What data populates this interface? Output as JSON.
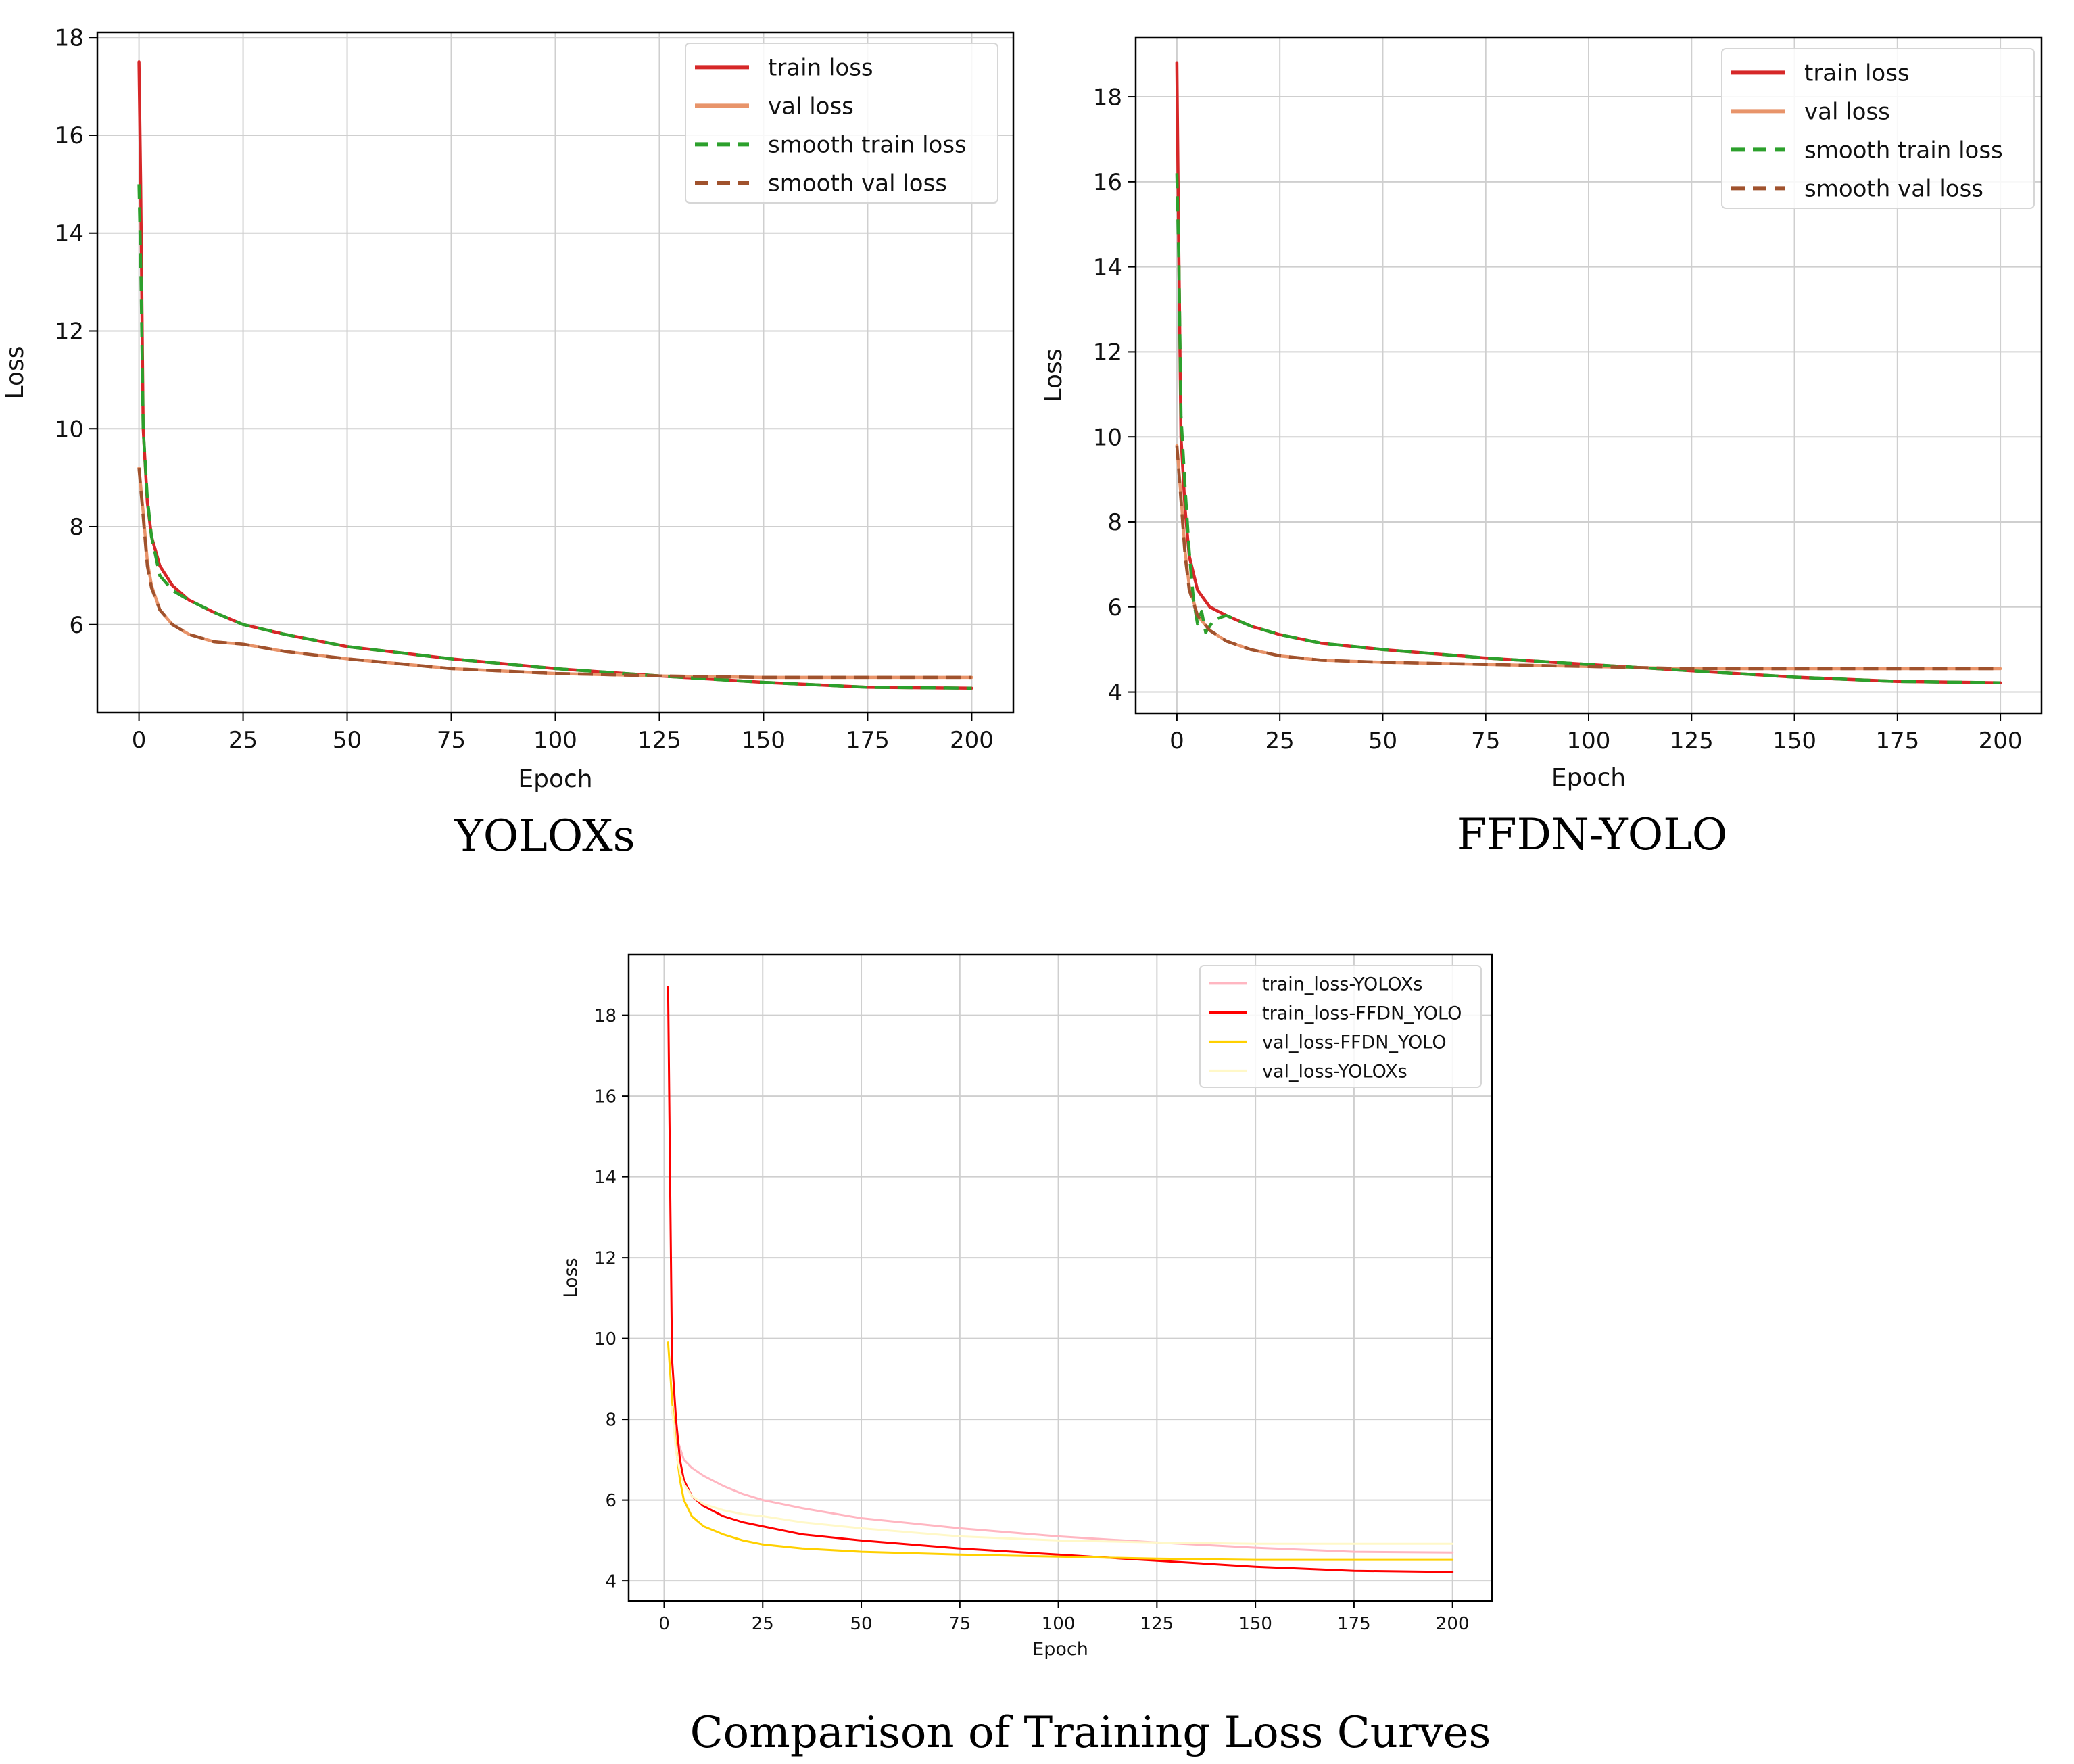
{
  "colors": {
    "train": "#d62728",
    "val": "#e8946a",
    "smooth_train": "#2ca02c",
    "smooth_val": "#a0522d",
    "cmp_train_yolox": "#ffb6c1",
    "cmp_train_ffdn": "#ff0000",
    "cmp_val_ffdn": "#ffd000",
    "cmp_val_yolox": "#fff8c8",
    "grid": "#cfcfcf",
    "axis": "#000000"
  },
  "chart_data": [
    {
      "type": "line",
      "caption": "YOLOXs",
      "xlabel": "Epoch",
      "ylabel": "Loss",
      "xlim": [
        -10,
        210
      ],
      "ylim": [
        4.2,
        18.1
      ],
      "xticks": [
        "0",
        "25",
        "50",
        "75",
        "100",
        "125",
        "150",
        "175",
        "200"
      ],
      "yticks": [
        "6",
        "8",
        "10",
        "12",
        "14",
        "16",
        "18"
      ],
      "legend_position": "top-right",
      "series": [
        {
          "name": "train loss",
          "style": "solid",
          "color_key": "train",
          "x": [
            0,
            0.4,
            1,
            2,
            3,
            5,
            8,
            12,
            18,
            25,
            35,
            50,
            75,
            100,
            125,
            150,
            175,
            200
          ],
          "y": [
            17.5,
            15.0,
            10.0,
            8.5,
            7.8,
            7.2,
            6.8,
            6.5,
            6.25,
            6.0,
            5.8,
            5.55,
            5.3,
            5.1,
            4.95,
            4.82,
            4.72,
            4.7
          ]
        },
        {
          "name": "val loss",
          "style": "solid",
          "color_key": "val",
          "x": [
            0,
            1,
            2,
            3,
            5,
            8,
            12,
            18,
            25,
            35,
            50,
            75,
            100,
            125,
            150,
            175,
            200
          ],
          "y": [
            9.2,
            8.3,
            7.3,
            6.8,
            6.3,
            6.0,
            5.8,
            5.65,
            5.6,
            5.45,
            5.3,
            5.1,
            5.0,
            4.95,
            4.92,
            4.92,
            4.92
          ]
        },
        {
          "name": "smooth train loss",
          "style": "dashed",
          "color_key": "smooth_train",
          "x": [
            0,
            0.5,
            1,
            2,
            3,
            5,
            8,
            12,
            18,
            25,
            35,
            50,
            75,
            100,
            125,
            150,
            175,
            200
          ],
          "y": [
            15.0,
            13.0,
            10.0,
            8.6,
            7.8,
            7.0,
            6.7,
            6.5,
            6.25,
            6.0,
            5.8,
            5.55,
            5.3,
            5.1,
            4.95,
            4.82,
            4.72,
            4.7
          ]
        },
        {
          "name": "smooth val loss",
          "style": "dashed",
          "color_key": "smooth_val",
          "x": [
            0,
            1,
            2,
            3,
            5,
            8,
            12,
            18,
            25,
            35,
            50,
            75,
            100,
            125,
            150,
            175,
            200
          ],
          "y": [
            9.2,
            8.2,
            7.2,
            6.75,
            6.3,
            6.0,
            5.8,
            5.65,
            5.6,
            5.45,
            5.3,
            5.1,
            5.0,
            4.95,
            4.92,
            4.92,
            4.92
          ]
        }
      ]
    },
    {
      "type": "line",
      "caption": "FFDN-YOLO",
      "xlabel": "Epoch",
      "ylabel": "Loss",
      "xlim": [
        -10,
        210
      ],
      "ylim": [
        3.5,
        19.4
      ],
      "xticks": [
        "0",
        "25",
        "50",
        "75",
        "100",
        "125",
        "150",
        "175",
        "200"
      ],
      "yticks": [
        "4",
        "6",
        "8",
        "10",
        "12",
        "14",
        "16",
        "18"
      ],
      "legend_position": "top-right",
      "series": [
        {
          "name": "train loss",
          "style": "solid",
          "color_key": "train",
          "x": [
            0,
            0.4,
            1,
            2,
            3,
            5,
            8,
            12,
            18,
            25,
            35,
            50,
            75,
            100,
            125,
            150,
            175,
            200
          ],
          "y": [
            18.8,
            15.0,
            10.0,
            8.3,
            7.2,
            6.4,
            6.0,
            5.8,
            5.55,
            5.35,
            5.15,
            5.0,
            4.8,
            4.65,
            4.5,
            4.35,
            4.25,
            4.22
          ]
        },
        {
          "name": "val loss",
          "style": "solid",
          "color_key": "val",
          "x": [
            0,
            1,
            2,
            3,
            5,
            8,
            12,
            18,
            25,
            35,
            50,
            75,
            100,
            125,
            150,
            175,
            200
          ],
          "y": [
            9.8,
            8.6,
            7.3,
            6.5,
            5.8,
            5.45,
            5.2,
            5.0,
            4.85,
            4.75,
            4.7,
            4.65,
            4.6,
            4.55,
            4.55,
            4.55,
            4.55
          ]
        },
        {
          "name": "smooth train loss",
          "style": "dashed",
          "color_key": "smooth_train",
          "x": [
            0,
            0.5,
            1,
            2,
            3,
            4,
            5,
            6,
            7,
            9,
            12,
            18,
            25,
            35,
            50,
            75,
            100,
            125,
            150,
            175,
            200
          ],
          "y": [
            16.2,
            14.0,
            10.5,
            8.8,
            7.3,
            6.2,
            5.6,
            5.9,
            5.4,
            5.7,
            5.8,
            5.55,
            5.35,
            5.15,
            5.0,
            4.8,
            4.65,
            4.5,
            4.35,
            4.25,
            4.22
          ]
        },
        {
          "name": "smooth val loss",
          "style": "dashed",
          "color_key": "smooth_val",
          "x": [
            0,
            1,
            2,
            3,
            5,
            8,
            12,
            18,
            25,
            35,
            50,
            75,
            100,
            125,
            150,
            175,
            200
          ],
          "y": [
            9.8,
            8.5,
            7.2,
            6.4,
            5.8,
            5.45,
            5.2,
            5.0,
            4.85,
            4.75,
            4.7,
            4.65,
            4.6,
            4.55,
            4.55,
            4.55,
            4.55
          ]
        }
      ]
    },
    {
      "type": "line",
      "caption": "Comparison of Training Loss Curves",
      "xlabel": "Epoch",
      "ylabel": "Loss",
      "xlim": [
        -9,
        210
      ],
      "ylim": [
        3.5,
        19.5
      ],
      "xticks": [
        "0",
        "25",
        "50",
        "75",
        "100",
        "125",
        "150",
        "175",
        "200"
      ],
      "yticks": [
        "4",
        "6",
        "8",
        "10",
        "12",
        "14",
        "16",
        "18"
      ],
      "legend_position": "top-right",
      "series": [
        {
          "name": "train_loss-YOLOXs",
          "style": "solid",
          "color_key": "cmp_train_yolox",
          "x": [
            2,
            3,
            4,
            5,
            7,
            10,
            15,
            20,
            25,
            35,
            50,
            75,
            100,
            125,
            150,
            175,
            200
          ],
          "y": [
            8.2,
            7.6,
            7.3,
            7.0,
            6.8,
            6.6,
            6.35,
            6.15,
            6.0,
            5.8,
            5.55,
            5.3,
            5.1,
            4.95,
            4.82,
            4.72,
            4.7
          ]
        },
        {
          "name": "train_loss-FFDN_YOLO",
          "style": "solid",
          "color_key": "cmp_train_ffdn",
          "x": [
            1,
            1.5,
            2,
            3,
            4,
            5,
            7,
            10,
            15,
            20,
            25,
            35,
            50,
            75,
            100,
            125,
            150,
            175,
            200
          ],
          "y": [
            18.7,
            14.0,
            9.5,
            8.0,
            7.0,
            6.5,
            6.1,
            5.85,
            5.6,
            5.45,
            5.35,
            5.15,
            5.0,
            4.8,
            4.65,
            4.5,
            4.35,
            4.25,
            4.22
          ]
        },
        {
          "name": "val_loss-FFDN_YOLO",
          "style": "solid",
          "color_key": "cmp_val_ffdn",
          "x": [
            1,
            2,
            3,
            4,
            5,
            7,
            10,
            15,
            20,
            25,
            35,
            50,
            75,
            100,
            125,
            150,
            175,
            200
          ],
          "y": [
            9.9,
            8.5,
            7.3,
            6.5,
            6.0,
            5.6,
            5.35,
            5.15,
            5.0,
            4.9,
            4.8,
            4.72,
            4.65,
            4.6,
            4.55,
            4.52,
            4.52,
            4.52
          ]
        },
        {
          "name": "val_loss-YOLOXs",
          "style": "solid",
          "color_key": "cmp_val_yolox",
          "x": [
            2,
            3,
            4,
            5,
            7,
            10,
            15,
            20,
            25,
            35,
            50,
            75,
            100,
            125,
            150,
            175,
            200
          ],
          "y": [
            8.3,
            7.2,
            6.7,
            6.4,
            6.1,
            5.9,
            5.75,
            5.65,
            5.6,
            5.45,
            5.3,
            5.1,
            5.0,
            4.95,
            4.92,
            4.92,
            4.92
          ]
        }
      ]
    }
  ]
}
